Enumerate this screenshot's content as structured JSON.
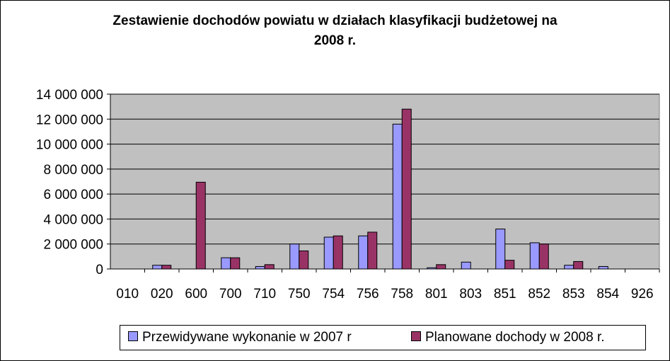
{
  "chart_data": {
    "type": "bar",
    "title_lines": [
      "Zestawienie dochodów powiatu w działach klasyfikacji budżetowej na",
      "2008 r."
    ],
    "categories": [
      "010",
      "020",
      "600",
      "700",
      "710",
      "750",
      "754",
      "756",
      "758",
      "801",
      "803",
      "851",
      "852",
      "853",
      "854",
      "926"
    ],
    "series": [
      {
        "name": "Przewidywane wykonanie w 2007 r",
        "color": "#9999ff",
        "values": [
          0,
          300000,
          0,
          900000,
          200000,
          2000000,
          2550000,
          2650000,
          11600000,
          100000,
          550000,
          3200000,
          2100000,
          300000,
          200000,
          0
        ]
      },
      {
        "name": "Planowane dochody w 2008 r.",
        "color": "#993366",
        "values": [
          0,
          300000,
          6950000,
          900000,
          350000,
          1450000,
          2650000,
          2950000,
          12800000,
          350000,
          0,
          700000,
          2000000,
          600000,
          0,
          0
        ]
      }
    ],
    "yticks": [
      "0",
      "2 000 000",
      "4 000 000",
      "6 000 000",
      "8 000 000",
      "10 000 000",
      "12 000 000",
      "14 000 000"
    ],
    "ylim": [
      0,
      14000000
    ],
    "grid": true,
    "plot_background": "#c0c0c0",
    "legend_position": "bottom"
  }
}
